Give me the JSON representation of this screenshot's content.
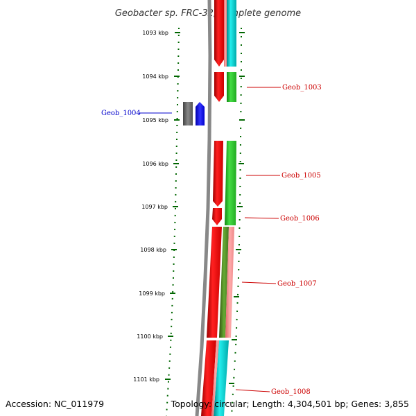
{
  "title": "Geobacter sp. FRC-32, complete genome",
  "ticks": [
    "1093 kbp",
    "1094 kbp",
    "1095 kbp",
    "1096 kbp",
    "1097 kbp",
    "1098 kbp",
    "1099 kbp",
    "1100 kbp",
    "1101 kbp"
  ],
  "genes": [
    {
      "label": "Geob_1003",
      "color": "#cc0000"
    },
    {
      "label": "Geob_1004",
      "color": "#0000cc"
    },
    {
      "label": "Geob_1005",
      "color": "#cc0000"
    },
    {
      "label": "Geob_1006",
      "color": "#cc0000"
    },
    {
      "label": "Geob_1007",
      "color": "#cc0000"
    },
    {
      "label": "Geob_1008",
      "color": "#cc0000"
    }
  ],
  "footer": {
    "accession": "Accession: NC_011979",
    "topology": "Topology: circular; Length: 4,304,501 bp; Genes: 3,855"
  },
  "colors": {
    "cds_forward": "#ee0000",
    "cds_reverse": "#0000ee",
    "gc_positive": "#22bb22",
    "gc_skew": "#00cccc",
    "gc_negative": "#ee8888",
    "backbone": "#888888",
    "ticks": "#006600",
    "other_feature": "#666666"
  }
}
